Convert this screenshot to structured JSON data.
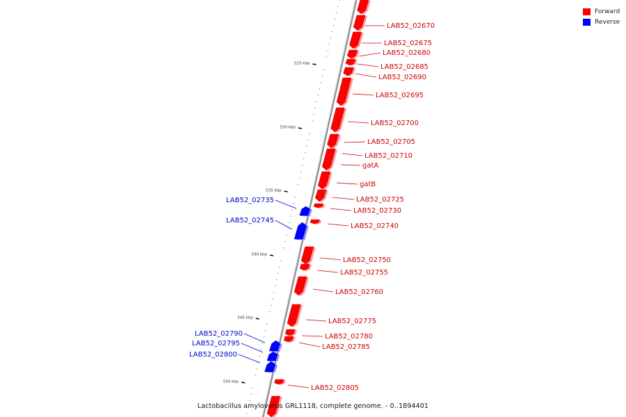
{
  "legend": {
    "forward_label": "Forward",
    "reverse_label": "Reverse",
    "forward_color": "#ff0000",
    "reverse_color": "#0000ff"
  },
  "caption": "Lactobacillus amylovorus GRL1118, complete genome. - 0..1894401",
  "colors": {
    "forward_label": "#cc0000",
    "reverse_label": "#0000cc",
    "backbone": "#888888"
  },
  "scale_labels": [
    "525 kbp",
    "530 kbp",
    "535 kbp",
    "540 kbp",
    "545 kbp",
    "550 kbp"
  ],
  "genes": [
    {
      "name": "LAB52_02670",
      "strand": "forward"
    },
    {
      "name": "LAB52_02675",
      "strand": "forward"
    },
    {
      "name": "LAB52_02680",
      "strand": "forward"
    },
    {
      "name": "LAB52_02685",
      "strand": "forward"
    },
    {
      "name": "LAB52_02690",
      "strand": "forward"
    },
    {
      "name": "LAB52_02695",
      "strand": "forward"
    },
    {
      "name": "LAB52_02700",
      "strand": "forward"
    },
    {
      "name": "LAB52_02705",
      "strand": "forward"
    },
    {
      "name": "LAB52_02710",
      "strand": "forward"
    },
    {
      "name": "gatA",
      "strand": "forward"
    },
    {
      "name": "gatB",
      "strand": "forward"
    },
    {
      "name": "LAB52_02725",
      "strand": "forward"
    },
    {
      "name": "LAB52_02730",
      "strand": "forward"
    },
    {
      "name": "LAB52_02735",
      "strand": "reverse"
    },
    {
      "name": "LAB52_02740",
      "strand": "forward"
    },
    {
      "name": "LAB52_02745",
      "strand": "reverse"
    },
    {
      "name": "LAB52_02750",
      "strand": "forward"
    },
    {
      "name": "LAB52_02755",
      "strand": "forward"
    },
    {
      "name": "LAB52_02760",
      "strand": "forward"
    },
    {
      "name": "LAB52_02775",
      "strand": "forward"
    },
    {
      "name": "LAB52_02780",
      "strand": "forward"
    },
    {
      "name": "LAB52_02785",
      "strand": "forward"
    },
    {
      "name": "LAB52_02790",
      "strand": "reverse"
    },
    {
      "name": "LAB52_02795",
      "strand": "reverse"
    },
    {
      "name": "LAB52_02800",
      "strand": "reverse"
    },
    {
      "name": "LAB52_02805",
      "strand": "forward"
    }
  ]
}
